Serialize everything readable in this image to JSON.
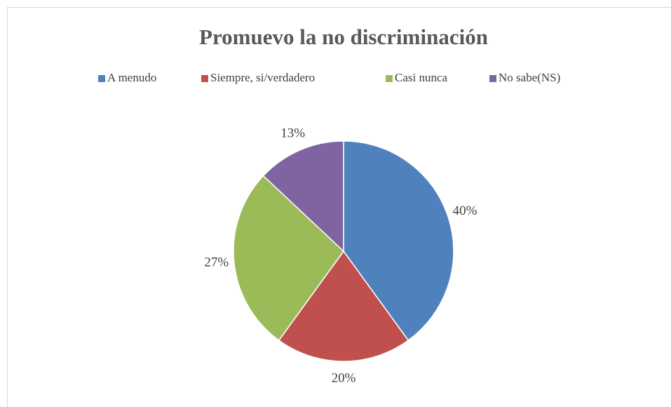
{
  "chart_data": {
    "type": "pie",
    "title": "Promuevo la no discriminación",
    "categories": [
      "A menudo",
      "Siempre, si/verdadero",
      "Casi nunca",
      "No sabe(NS)"
    ],
    "values": [
      40,
      20,
      27,
      13
    ],
    "value_labels": [
      "40%",
      "20%",
      "27%",
      "13%"
    ],
    "colors": [
      "#4f81bd",
      "#c0504d",
      "#9bbb59",
      "#8064a2"
    ],
    "legend": "top"
  }
}
